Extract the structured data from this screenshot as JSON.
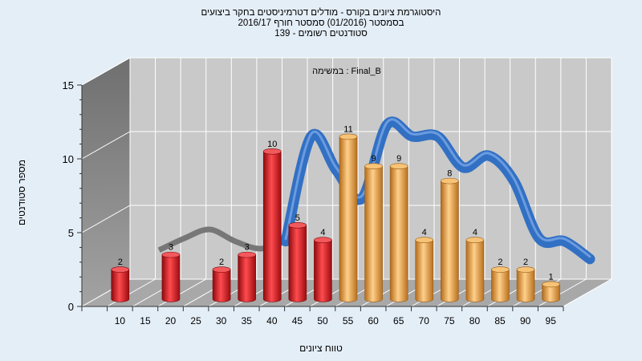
{
  "chart_data": {
    "type": "bar",
    "title_lines": [
      "היסטוגרמת ציונים בקורס - מודלים דטרמיניסטים בחקר ביצועים",
      "בסמסטר  (01/2016)  סמסטר חורף 2016/17",
      "סטודנטים רשומים - 139"
    ],
    "subtitle": "Final_B : במשימה",
    "xlabel": "טווח ציונים",
    "ylabel": "מספר סטודנטים",
    "x_ticks": [
      "10",
      "15",
      "20",
      "25",
      "30",
      "35",
      "40",
      "45",
      "50",
      "55",
      "60",
      "65",
      "70",
      "75",
      "80",
      "85",
      "90",
      "95"
    ],
    "y_ticks": [
      "0",
      "5",
      "10",
      "15"
    ],
    "ylim": [
      0,
      15
    ],
    "grid": true,
    "categories": [
      "10",
      "20",
      "30",
      "35",
      "40",
      "45",
      "50",
      "55",
      "60",
      "65",
      "70",
      "75",
      "80",
      "85",
      "90",
      "95"
    ],
    "values": [
      2,
      3,
      2,
      3,
      10,
      5,
      4,
      11,
      9,
      9,
      4,
      8,
      4,
      2,
      2,
      1
    ],
    "bar_colors": [
      "red",
      "red",
      "red",
      "red",
      "red",
      "red",
      "red",
      "orange",
      "orange",
      "orange",
      "orange",
      "orange",
      "orange",
      "orange",
      "orange",
      "orange"
    ],
    "distribution_curve": {
      "x": [
        15,
        20,
        25,
        30,
        35,
        40,
        45,
        50,
        55,
        60,
        65,
        70,
        75,
        80,
        85,
        90,
        95,
        100
      ],
      "y": [
        2.8,
        3.6,
        4.2,
        3.4,
        2.9,
        3.4,
        10.5,
        8.2,
        6.3,
        11.3,
        10.5,
        10.5,
        8.4,
        9.2,
        7.5,
        3.6,
        3.4,
        2.2
      ]
    },
    "colors": {
      "red": "#d9151b",
      "orange": "#f0a23c",
      "curve": "#3270c3",
      "curve_gray": "#777777",
      "back_wall": "#c9c9c9",
      "side_wall": "#8c8c8c",
      "floor": "#a8a8a8"
    }
  }
}
